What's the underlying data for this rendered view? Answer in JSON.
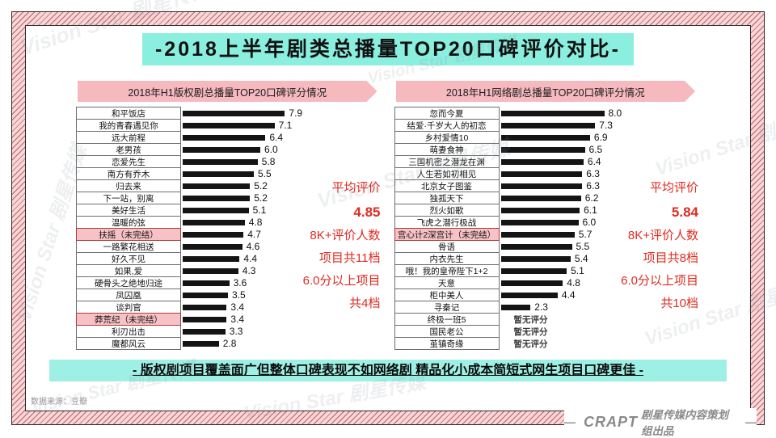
{
  "page_title": "-2018上半年剧类总播量TOP20口碑评价对比-",
  "watermark_text": "Vision Star 剧星传媒",
  "no_rating_label": "暂无评分",
  "conclusion": "- 版权剧项目覆盖面广但整体口碑表现不如网络剧 精品化小成本简短式网生项目口碑更佳 -",
  "data_source": "数据来源：豆瓣",
  "footer": {
    "dash": "—",
    "brand": "CRAPT",
    "suffix": "剧星传媒内容策划组出品"
  },
  "colors": {
    "accent_aqua": "#8BEFE0",
    "banner_pink": "#F5B9BE",
    "highlight_pink": "#F6C2C5",
    "highlight_border": "#B03A3A",
    "bar_black": "#141414",
    "summary_red": "#E02B20",
    "frame_pink": "#F9D6D7",
    "frame_stripe": "#BB6064"
  },
  "charts": [
    {
      "header": "2018年H1版权剧总播量TOP20口碑评分情况",
      "summary": {
        "title": "平均评价",
        "average": "4.85",
        "lines": [
          "8K+评价人数",
          "项目共11档",
          "6.0分以上项目",
          "共4档"
        ]
      },
      "rows": [
        {
          "label": "和平饭店",
          "value": 7.9,
          "highlight": false
        },
        {
          "label": "我的青春遇见你",
          "value": 7.1,
          "highlight": false
        },
        {
          "label": "远大前程",
          "value": 6.4,
          "highlight": false
        },
        {
          "label": "老男孩",
          "value": 6.0,
          "highlight": false
        },
        {
          "label": "恋爱先生",
          "value": 5.8,
          "highlight": false
        },
        {
          "label": "南方有乔木",
          "value": 5.5,
          "highlight": false
        },
        {
          "label": "归去来",
          "value": 5.2,
          "highlight": false
        },
        {
          "label": "下一站，别离",
          "value": 5.2,
          "highlight": false
        },
        {
          "label": "美好生活",
          "value": 5.1,
          "highlight": false
        },
        {
          "label": "温暖的弦",
          "value": 4.8,
          "highlight": false
        },
        {
          "label": "扶摇（未完结）",
          "value": 4.7,
          "highlight": true
        },
        {
          "label": "一路繁花相送",
          "value": 4.6,
          "highlight": false
        },
        {
          "label": "好久不见",
          "value": 4.4,
          "highlight": false
        },
        {
          "label": "如果,爱",
          "value": 4.3,
          "highlight": false
        },
        {
          "label": "硬骨头之绝地归途",
          "value": 3.6,
          "highlight": false
        },
        {
          "label": "凤囚凰",
          "value": 3.5,
          "highlight": false
        },
        {
          "label": "谈判官",
          "value": 3.4,
          "highlight": false
        },
        {
          "label": "莽荒纪（未完结）",
          "value": 3.4,
          "highlight": true
        },
        {
          "label": "利刃出击",
          "value": 3.3,
          "highlight": false
        },
        {
          "label": "魔都风云",
          "value": 2.8,
          "highlight": false
        }
      ]
    },
    {
      "header": "2018年H1网络剧总播量TOP20口碑评分情况",
      "summary": {
        "title": "平均评价",
        "average": "5.84",
        "lines": [
          "8K+评价人数",
          "项目共8档",
          "6.0分以上项目",
          "共10档"
        ]
      },
      "rows": [
        {
          "label": "忽而今夏",
          "value": 8.0,
          "highlight": false
        },
        {
          "label": "结爱·千岁大人的初恋",
          "value": 7.3,
          "highlight": false
        },
        {
          "label": "乡村爱情10",
          "value": 6.9,
          "highlight": false
        },
        {
          "label": "萌妻食神",
          "value": 6.5,
          "highlight": false
        },
        {
          "label": "三国机密之潜龙在渊",
          "value": 6.4,
          "highlight": false
        },
        {
          "label": "人生若如初相见",
          "value": 6.3,
          "highlight": false
        },
        {
          "label": "北京女子图鉴",
          "value": 6.3,
          "highlight": false
        },
        {
          "label": "独孤天下",
          "value": 6.2,
          "highlight": false
        },
        {
          "label": "烈火如歌",
          "value": 6.1,
          "highlight": false
        },
        {
          "label": "飞虎之潜行极战",
          "value": 6.0,
          "highlight": false
        },
        {
          "label": "宫心计2深宫计（未完结）",
          "value": 5.7,
          "highlight": true
        },
        {
          "label": "骨语",
          "value": 5.5,
          "highlight": false
        },
        {
          "label": "内衣先生",
          "value": 5.4,
          "highlight": false
        },
        {
          "label": "哦！我的皇帝陛下1+2",
          "value": 5.1,
          "highlight": false
        },
        {
          "label": "天意",
          "value": 4.8,
          "highlight": false
        },
        {
          "label": "柜中美人",
          "value": 4.4,
          "highlight": false
        },
        {
          "label": "寻秦记",
          "value": 2.3,
          "highlight": false
        },
        {
          "label": "终极一班5",
          "value": null,
          "highlight": false
        },
        {
          "label": "国民老公",
          "value": null,
          "highlight": false
        },
        {
          "label": "茧镇奇缘",
          "value": null,
          "highlight": false
        }
      ]
    }
  ],
  "chart_data": [
    {
      "type": "bar",
      "orientation": "horizontal",
      "title": "2018年H1版权剧总播量TOP20口碑评分情况",
      "categories": [
        "和平饭店",
        "我的青春遇见你",
        "远大前程",
        "老男孩",
        "恋爱先生",
        "南方有乔木",
        "归去来",
        "下一站，别离",
        "美好生活",
        "温暖的弦",
        "扶摇（未完结）",
        "一路繁花相送",
        "好久不见",
        "如果,爱",
        "硬骨头之绝地归途",
        "凤囚凰",
        "谈判官",
        "莽荒纪（未完结）",
        "利刃出击",
        "魔都风云"
      ],
      "values": [
        7.9,
        7.1,
        6.4,
        6.0,
        5.8,
        5.5,
        5.2,
        5.2,
        5.1,
        4.8,
        4.7,
        4.6,
        4.4,
        4.3,
        3.6,
        3.5,
        3.4,
        3.4,
        3.3,
        2.8
      ],
      "highlighted_categories": [
        "扶摇（未完结）",
        "莽荒纪（未完结）"
      ],
      "xlim": [
        0,
        8.5
      ],
      "grid": false,
      "annotations": [
        "平均评价 4.85",
        "8K+评价人数 项目共11档",
        "6.0分以上项目 共4档"
      ]
    },
    {
      "type": "bar",
      "orientation": "horizontal",
      "title": "2018年H1网络剧总播量TOP20口碑评分情况",
      "categories": [
        "忽而今夏",
        "结爱·千岁大人的初恋",
        "乡村爱情10",
        "萌妻食神",
        "三国机密之潜龙在渊",
        "人生若如初相见",
        "北京女子图鉴",
        "独孤天下",
        "烈火如歌",
        "飞虎之潜行极战",
        "宫心计2深宫计（未完结）",
        "骨语",
        "内衣先生",
        "哦！我的皇帝陛下1+2",
        "天意",
        "柜中美人",
        "寻秦记",
        "终极一班5",
        "国民老公",
        "茧镇奇缘"
      ],
      "values": [
        8.0,
        7.3,
        6.9,
        6.5,
        6.4,
        6.3,
        6.3,
        6.2,
        6.1,
        6.0,
        5.7,
        5.5,
        5.4,
        5.1,
        4.8,
        4.4,
        2.3,
        null,
        null,
        null
      ],
      "no_rating_note": "暂无评分",
      "highlighted_categories": [
        "宫心计2深宫计（未完结）"
      ],
      "xlim": [
        0,
        8.5
      ],
      "grid": false,
      "annotations": [
        "平均评价 5.84",
        "8K+评价人数 项目共8档",
        "6.0分以上项目 共10档"
      ]
    }
  ]
}
